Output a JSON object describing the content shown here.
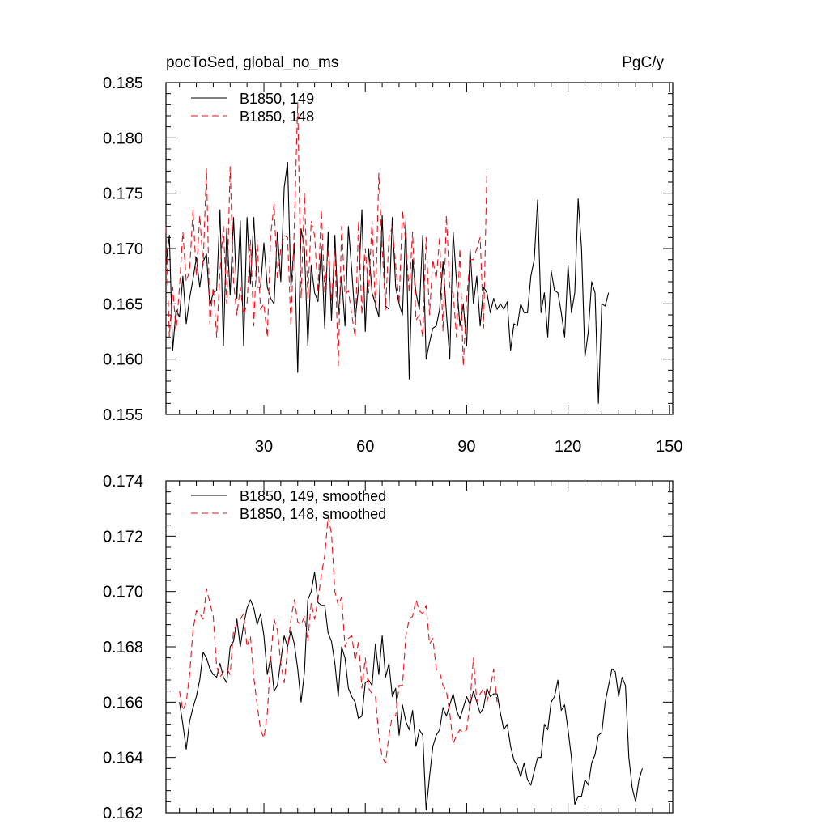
{
  "page": {
    "left_title": "pocToSed, global_no_ms",
    "right_title": "PgC/y"
  },
  "chart_data": [
    {
      "type": "line",
      "title": "pocToSed, global_no_ms",
      "units": "PgC/y",
      "xlim": [
        1,
        151
      ],
      "ylim": [
        0.155,
        0.185
      ],
      "x_ticks": [
        30,
        60,
        90,
        120,
        150
      ],
      "x_tick_labels": [
        "30",
        "60",
        "90",
        "120",
        "150"
      ],
      "y_ticks": [
        0.155,
        0.16,
        0.165,
        0.17,
        0.175,
        0.18,
        0.185
      ],
      "y_tick_labels": [
        "0.155",
        "0.160",
        "0.165",
        "0.170",
        "0.175",
        "0.180",
        "0.185"
      ],
      "grid": false,
      "legend_position": "top-left",
      "series": [
        {
          "name": "B1850, 149",
          "color": "#000000",
          "dash": "solid",
          "x_start": 1,
          "values": [
            0.1685,
            0.1712,
            0.1608,
            0.1645,
            0.1638,
            0.1675,
            0.1632,
            0.1655,
            0.1672,
            0.1692,
            0.1665,
            0.1688,
            0.1695,
            0.1648,
            0.166,
            0.1662,
            0.1735,
            0.1612,
            0.1718,
            0.1658,
            0.1728,
            0.1655,
            0.1725,
            0.1612,
            0.1728,
            0.1668,
            0.1728,
            0.1665,
            0.1665,
            0.1705,
            0.1665,
            0.1655,
            0.165,
            0.1715,
            0.167,
            0.1755,
            0.1778,
            0.1665,
            0.1705,
            0.1588,
            0.1718,
            0.17,
            0.1612,
            0.1685,
            0.166,
            0.1652,
            0.1702,
            0.1628,
            0.1715,
            0.1635,
            0.1712,
            0.164,
            0.1675,
            0.163,
            0.172,
            0.168,
            0.1635,
            0.1665,
            0.1735,
            0.1625,
            0.17,
            0.166,
            0.165,
            0.1638,
            0.173,
            0.1648,
            0.1645,
            0.1728,
            0.1665,
            0.165,
            0.164,
            0.1725,
            0.1582,
            0.169,
            0.166,
            0.1645,
            0.1712,
            0.16,
            0.1615,
            0.1628,
            0.163,
            0.1645,
            0.1688,
            0.1642,
            0.16,
            0.1715,
            0.167,
            0.163,
            0.165,
            0.1612,
            0.17,
            0.165,
            0.1675,
            0.163,
            0.1665,
            0.166,
            0.1642,
            0.1655,
            0.1645,
            0.165,
            0.1645,
            0.1652,
            0.1608,
            0.1632,
            0.163,
            0.165,
            0.1642,
            0.1642,
            0.1675,
            0.169,
            0.1744,
            0.1642,
            0.166,
            0.162,
            0.168,
            0.1662,
            0.166,
            0.1642,
            0.162,
            0.1685,
            0.1642,
            0.166,
            0.1745,
            0.17,
            0.1602,
            0.1625,
            0.167,
            0.166,
            0.156,
            0.165,
            0.1648,
            0.166
          ]
        },
        {
          "name": "B1850, 148",
          "color": "#e8101a",
          "dash": "dashed",
          "x_start": 1,
          "values": [
            0.172,
            0.162,
            0.1665,
            0.1625,
            0.1665,
            0.1715,
            0.167,
            0.168,
            0.1735,
            0.1675,
            0.173,
            0.1685,
            0.1772,
            0.1632,
            0.1665,
            0.162,
            0.168,
            0.172,
            0.165,
            0.1774,
            0.167,
            0.164,
            0.1665,
            0.164,
            0.165,
            0.1708,
            0.163,
            0.1708,
            0.1645,
            0.165,
            0.162,
            0.1712,
            0.174,
            0.1672,
            0.17,
            0.1712,
            0.171,
            0.163,
            0.172,
            0.1832,
            0.1655,
            0.175,
            0.1655,
            0.1725,
            0.1712,
            0.166,
            0.1735,
            0.166,
            0.17,
            0.1652,
            0.17,
            0.1594,
            0.172,
            0.1658,
            0.1662,
            0.164,
            0.162,
            0.1725,
            0.164,
            0.17,
            0.166,
            0.1725,
            0.1645,
            0.1768,
            0.17,
            0.1645,
            0.171,
            0.172,
            0.1685,
            0.165,
            0.1735,
            0.1705,
            0.166,
            0.1715,
            0.1635,
            0.164,
            0.162,
            0.171,
            0.164,
            0.169,
            0.1672,
            0.171,
            0.1625,
            0.173,
            0.1665,
            0.166,
            0.162,
            0.17,
            0.1594,
            0.1655,
            0.169,
            0.169,
            0.17,
            0.171,
            0.1628,
            0.1772
          ]
        }
      ]
    },
    {
      "type": "line",
      "xlim": [
        1,
        151
      ],
      "ylim": [
        0.162,
        0.174
      ],
      "x_ticks": [
        30,
        60,
        90,
        120,
        150
      ],
      "y_ticks": [
        0.162,
        0.164,
        0.166,
        0.168,
        0.17,
        0.172,
        0.174
      ],
      "y_tick_labels": [
        "0.162",
        "0.164",
        "0.166",
        "0.168",
        "0.170",
        "0.172",
        "0.174"
      ],
      "grid": false,
      "legend_position": "top-left",
      "series": [
        {
          "name": "B1850, 149, smoothed",
          "color": "#000000",
          "dash": "solid",
          "x_start": 5,
          "values": [
            0.166,
            0.1652,
            0.1643,
            0.1653,
            0.1658,
            0.1662,
            0.1668,
            0.1678,
            0.1676,
            0.1672,
            0.167,
            0.1669,
            0.1674,
            0.1669,
            0.1667,
            0.168,
            0.1682,
            0.169,
            0.168,
            0.1688,
            0.1694,
            0.1697,
            0.1694,
            0.1688,
            0.1692,
            0.1684,
            0.167,
            0.1676,
            0.1664,
            0.1666,
            0.1675,
            0.1684,
            0.168,
            0.1686,
            0.1681,
            0.1672,
            0.166,
            0.1671,
            0.1697,
            0.17,
            0.1707,
            0.1696,
            0.1695,
            0.1695,
            0.1685,
            0.1682,
            0.1674,
            0.1662,
            0.168,
            0.1676,
            0.1665,
            0.1662,
            0.166,
            0.1654,
            0.1655,
            0.1667,
            0.1668,
            0.1666,
            0.1681,
            0.167,
            0.1684,
            0.1669,
            0.1674,
            0.1662,
            0.1665,
            0.1648,
            0.1659,
            0.1653,
            0.165,
            0.1657,
            0.1644,
            0.165,
            0.1648,
            0.1621,
            0.1633,
            0.1644,
            0.1648,
            0.165,
            0.1658,
            0.1655,
            0.1659,
            0.1663,
            0.1657,
            0.1654,
            0.1658,
            0.1662,
            0.1659,
            0.1664,
            0.166,
            0.1656,
            0.1658,
            0.1665,
            0.1662,
            0.1663,
            0.1663,
            0.1656,
            0.165,
            0.1652,
            0.1644,
            0.1639,
            0.1637,
            0.1633,
            0.1638,
            0.1632,
            0.163,
            0.1635,
            0.164,
            0.164,
            0.1652,
            0.165,
            0.166,
            0.1662,
            0.1668,
            0.1657,
            0.1659,
            0.165,
            0.164,
            0.1623,
            0.1626,
            0.1626,
            0.1632,
            0.163,
            0.1638,
            0.1641,
            0.1648,
            0.1649,
            0.166,
            0.1666,
            0.1672,
            0.1671,
            0.1662,
            0.1669,
            0.1666,
            0.164,
            0.1629,
            0.1624,
            0.1632,
            0.1636
          ]
        },
        {
          "name": "B1850, 148, smoothed",
          "color": "#e8101a",
          "dash": "dashed",
          "x_start": 5,
          "values": [
            0.1664,
            0.1657,
            0.166,
            0.167,
            0.1686,
            0.1693,
            0.1692,
            0.169,
            0.1701,
            0.1696,
            0.1691,
            0.1673,
            0.1669,
            0.1671,
            0.1672,
            0.167,
            0.1686,
            0.1688,
            0.169,
            0.1692,
            0.168,
            0.1684,
            0.1669,
            0.1659,
            0.165,
            0.1647,
            0.1656,
            0.1676,
            0.169,
            0.1686,
            0.1674,
            0.1667,
            0.1679,
            0.169,
            0.1697,
            0.1689,
            0.1688,
            0.1691,
            0.1682,
            0.1696,
            0.169,
            0.1697,
            0.1706,
            0.1713,
            0.1727,
            0.1721,
            0.17,
            0.1695,
            0.1698,
            0.168,
            0.1683,
            0.1684,
            0.1675,
            0.1682,
            0.1665,
            0.1676,
            0.1665,
            0.1663,
            0.1662,
            0.1648,
            0.164,
            0.1638,
            0.1648,
            0.1655,
            0.1655,
            0.1666,
            0.1666,
            0.1684,
            0.169,
            0.1691,
            0.1697,
            0.1693,
            0.1692,
            0.1695,
            0.1681,
            0.1683,
            0.1672,
            0.1671,
            0.1666,
            0.1664,
            0.1656,
            0.1645,
            0.1648,
            0.165,
            0.1649,
            0.165,
            0.166,
            0.1676,
            0.166,
            0.1663,
            0.1665,
            0.166,
            0.1665,
            0.1672,
            0.166
          ]
        }
      ]
    }
  ]
}
